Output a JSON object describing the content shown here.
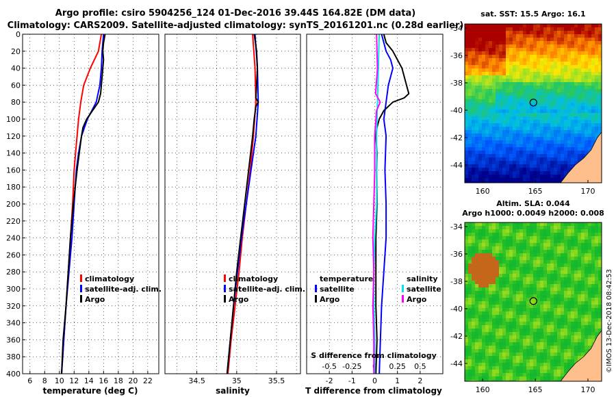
{
  "header": {
    "title_line1": "Argo profile: csiro 5904256_124 01-Dec-2016 39.44S 164.82E (DM data)",
    "title_line2": "Climatology: CARS2009. Satellite-adjusted climatology: synTS_20161201.nc (0.28d earlier)"
  },
  "colors": {
    "climatology": "#ff0000",
    "satellite": "#0000ff",
    "argo": "#000000",
    "satellite_s": "#00e5ee",
    "argo_s": "#ff00ff",
    "land": "#ffbf8c"
  },
  "chart_data": [
    {
      "type": "line",
      "name": "temperature",
      "xlabel": "temperature (deg C)",
      "ylabel": "",
      "xlim": [
        5,
        23.5
      ],
      "ylim": [
        400,
        0
      ],
      "xticks": [
        6,
        8,
        10,
        12,
        14,
        16,
        18,
        20,
        22
      ],
      "yticks": [
        0,
        20,
        40,
        60,
        80,
        100,
        120,
        140,
        160,
        180,
        200,
        220,
        240,
        260,
        280,
        300,
        320,
        340,
        360,
        380,
        400
      ],
      "grid": true,
      "legend": [
        "climatology",
        "satellite-adj. clim.",
        "Argo"
      ],
      "series": [
        {
          "name": "climatology",
          "depth": [
            0,
            20,
            40,
            60,
            80,
            100,
            120,
            140,
            160,
            200,
            240,
            280,
            320,
            360,
            400
          ],
          "values": [
            15.7,
            15.3,
            14.2,
            13.3,
            12.9,
            12.6,
            12.4,
            12.2,
            12.0,
            11.8,
            11.5,
            11.2,
            10.9,
            10.6,
            10.3
          ]
        },
        {
          "name": "satellite-adj. clim.",
          "depth": [
            0,
            20,
            40,
            60,
            80,
            100,
            120,
            140,
            160,
            200,
            240,
            280,
            320,
            360,
            400
          ],
          "values": [
            16.0,
            15.8,
            15.7,
            15.5,
            15.0,
            13.8,
            13.0,
            12.6,
            12.3,
            12.0,
            11.7,
            11.3,
            10.9,
            10.6,
            10.3
          ]
        },
        {
          "name": "Argo",
          "depth": [
            0,
            10,
            20,
            30,
            40,
            50,
            60,
            70,
            80,
            90,
            100,
            110,
            120,
            140,
            160,
            200,
            240,
            280,
            320,
            360,
            400
          ],
          "values": [
            16.2,
            16.0,
            15.9,
            16.0,
            15.9,
            15.8,
            15.7,
            15.6,
            15.3,
            14.5,
            13.7,
            13.2,
            13.0,
            12.7,
            12.4,
            11.9,
            11.5,
            11.2,
            10.9,
            10.5,
            10.3
          ]
        }
      ]
    },
    {
      "type": "line",
      "name": "salinity",
      "xlabel": "salinity",
      "ylabel": "",
      "xlim": [
        34.1,
        35.8
      ],
      "ylim": [
        400,
        0
      ],
      "xticks": [
        34.5,
        35,
        35.5
      ],
      "yticks": [
        0,
        20,
        40,
        60,
        80,
        100,
        120,
        140,
        160,
        180,
        200,
        220,
        240,
        260,
        280,
        300,
        320,
        340,
        360,
        380,
        400
      ],
      "grid": true,
      "legend": [
        "climatology",
        "satellite-adj. clim.",
        "Argo"
      ],
      "series": [
        {
          "name": "climatology",
          "depth": [
            0,
            40,
            80,
            120,
            160,
            200,
            240,
            280,
            320,
            360,
            400
          ],
          "values": [
            35.2,
            35.23,
            35.24,
            35.21,
            35.17,
            35.12,
            35.07,
            35.03,
            34.98,
            34.93,
            34.89
          ]
        },
        {
          "name": "satellite-adj. clim.",
          "depth": [
            0,
            40,
            80,
            120,
            160,
            200,
            240,
            280,
            320,
            360,
            400
          ],
          "values": [
            35.23,
            35.26,
            35.27,
            35.24,
            35.18,
            35.12,
            35.06,
            35.01,
            34.96,
            34.92,
            34.88
          ]
        },
        {
          "name": "Argo",
          "depth": [
            0,
            20,
            40,
            60,
            75,
            80,
            85,
            100,
            120,
            160,
            200,
            240,
            280,
            320,
            360,
            400
          ],
          "values": [
            35.22,
            35.25,
            35.26,
            35.25,
            35.24,
            35.27,
            35.24,
            35.22,
            35.2,
            35.15,
            35.1,
            35.05,
            35.0,
            34.96,
            34.92,
            34.88
          ]
        }
      ]
    },
    {
      "type": "line",
      "name": "difference from climatology",
      "xlabel": "T difference from climatology",
      "xlabel_top": "S difference from climatology",
      "xlim": [
        -3,
        3
      ],
      "ylim": [
        400,
        0
      ],
      "xticks": [
        -2,
        -1,
        0,
        1,
        2
      ],
      "xticks_s": [
        -0.5,
        -0.25,
        0,
        0.25,
        0.5
      ],
      "xtick_labels_s": [
        "-0.5",
        "-0.25",
        "0",
        "0.25",
        "0.5"
      ],
      "grid": true,
      "legend_t": {
        "heading": "temperature",
        "items": [
          "satellite",
          "Argo"
        ]
      },
      "legend_s": {
        "heading": "salinity",
        "items": [
          "satellite",
          "Argo"
        ]
      },
      "series": [
        {
          "name": "T satellite",
          "depth": [
            0,
            20,
            30,
            40,
            50,
            60,
            80,
            100,
            120,
            160,
            200,
            240,
            280,
            320,
            360,
            400
          ],
          "values": [
            0.3,
            0.5,
            0.7,
            0.8,
            0.7,
            0.6,
            0.5,
            0.4,
            0.5,
            0.45,
            0.5,
            0.5,
            0.4,
            0.3,
            0.25,
            0.2
          ]
        },
        {
          "name": "T Argo",
          "depth": [
            0,
            10,
            20,
            40,
            60,
            70,
            75,
            80,
            90,
            100,
            110,
            120,
            140,
            160,
            200,
            240,
            280,
            320,
            360,
            400
          ],
          "values": [
            0.4,
            0.5,
            0.8,
            1.2,
            1.4,
            1.5,
            1.3,
            0.8,
            0.4,
            0.2,
            0.1,
            0.05,
            0.1,
            0.08,
            0.1,
            0.05,
            0.05,
            0.05,
            0.1,
            0.05
          ]
        },
        {
          "name": "S satellite",
          "depth": [
            0,
            40,
            80,
            120,
            160,
            200,
            240,
            280,
            320,
            360,
            400
          ],
          "values": [
            0.05,
            0.04,
            0.03,
            0.02,
            0.02,
            0.02,
            0.0,
            -0.01,
            -0.01,
            0.0,
            0.0
          ]
        },
        {
          "name": "S Argo",
          "depth": [
            0,
            40,
            70,
            80,
            90,
            120,
            160,
            200,
            240,
            280,
            320,
            360,
            400
          ],
          "values": [
            0.02,
            0.03,
            0.01,
            0.06,
            0.02,
            0.0,
            0.0,
            -0.01,
            -0.02,
            -0.01,
            -0.02,
            -0.01,
            -0.01
          ]
        }
      ]
    },
    {
      "type": "heatmap",
      "name": "sat. SST map",
      "title": "sat. SST: 15.5 Argo: 16.1",
      "xlim": [
        158.3,
        171.3
      ],
      "ylim": [
        -45.3,
        -33.7
      ],
      "xticks": [
        160,
        165,
        170
      ],
      "yticks": [
        -34,
        -36,
        -38,
        -40,
        -42,
        -44
      ],
      "profile_lon": 164.82,
      "profile_lat": -39.44
    },
    {
      "type": "heatmap",
      "name": "altimetry SLA map",
      "title": "Altim. SLA: 0.044",
      "subtitle": "Argo h1000: 0.0049 h2000: 0.008",
      "xlim": [
        158.3,
        171.3
      ],
      "ylim": [
        -45.3,
        -33.7
      ],
      "xticks": [
        160,
        165,
        170
      ],
      "yticks": [
        -34,
        -36,
        -38,
        -40,
        -42,
        -44
      ],
      "profile_lon": 164.82,
      "profile_lat": -39.44
    }
  ],
  "footer": {
    "stamp": "©IMOS 13-Dec-2018 08:42:53"
  }
}
